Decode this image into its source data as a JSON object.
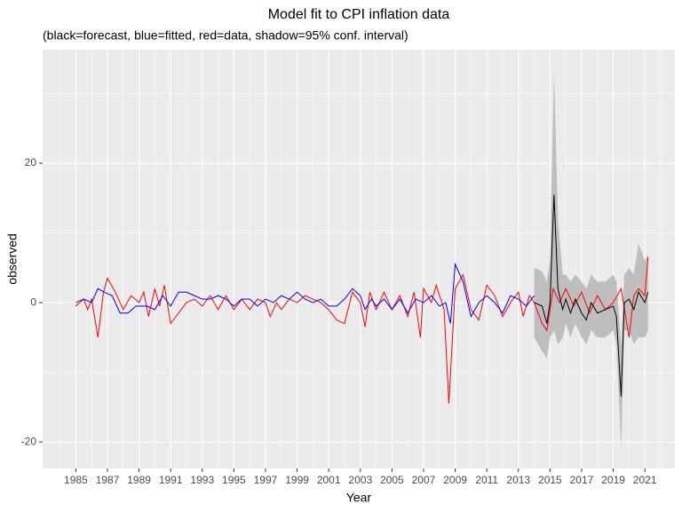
{
  "chart_data": {
    "type": "line",
    "title": "Model fit to CPI inflation data",
    "subtitle": "(black=forecast, blue=fitted, red=data, shadow=95% conf. interval)",
    "xlabel": "Year",
    "ylabel": "observed",
    "xlim": [
      1982.9,
      2022.9
    ],
    "ylim": [
      -23.8,
      36.3
    ],
    "xticks": [
      1985,
      1987,
      1989,
      1991,
      1993,
      1995,
      1997,
      1999,
      2001,
      2003,
      2005,
      2007,
      2009,
      2011,
      2013,
      2015,
      2017,
      2019,
      2021
    ],
    "xminor": [
      1984,
      1986,
      1988,
      1990,
      1992,
      1994,
      1996,
      1998,
      2000,
      2002,
      2004,
      2006,
      2008,
      2010,
      2012,
      2014,
      2016,
      2018,
      2020,
      2022
    ],
    "yticks": [
      -20,
      0,
      20
    ],
    "yminor": [
      -10,
      10,
      30
    ],
    "grid": true,
    "band": {
      "color": "#bebebe",
      "x": [
        2014,
        2014.5,
        2014.8,
        2015,
        2015.25,
        2015.5,
        2015.8,
        2016,
        2016.3,
        2016.6,
        2017,
        2017.3,
        2017.6,
        2018,
        2018.5,
        2019,
        2019.2,
        2019.5,
        2019.7,
        2020,
        2020.3,
        2020.6,
        2021,
        2021.2
      ],
      "upper": [
        5,
        4.5,
        3,
        6,
        33.5,
        12,
        4,
        4,
        3,
        4,
        3,
        2,
        4,
        3,
        3,
        4,
        3,
        -6,
        4,
        5,
        4,
        8.5,
        6,
        7
      ],
      "lower": [
        -5,
        -7,
        -8,
        -5,
        -4,
        -6,
        -5,
        -3,
        -5,
        -3,
        -5,
        -6,
        -4,
        -5,
        -5,
        -4,
        -6,
        -21,
        -4,
        -4,
        -6,
        -5,
        -5,
        -4
      ]
    },
    "series": [
      {
        "color": "#ff0000",
        "x": [
          1985,
          1985.5,
          1985.75,
          1986,
          1986.4,
          1986.75,
          1987,
          1987.5,
          1988,
          1988.5,
          1989,
          1989.3,
          1989.6,
          1990,
          1990.3,
          1990.6,
          1991,
          1991.5,
          1992,
          1992.5,
          1993,
          1993.5,
          1994,
          1994.5,
          1995,
          1995.5,
          1996,
          1996.5,
          1997,
          1997.3,
          1997.7,
          1998,
          1998.5,
          1999,
          1999.5,
          2000,
          2000.5,
          2001,
          2001.5,
          2002,
          2002.5,
          2003,
          2003.3,
          2003.6,
          2004,
          2004.5,
          2005,
          2005.5,
          2006,
          2006.4,
          2006.8,
          2007,
          2007.5,
          2007.8,
          2008.3,
          2008.6,
          2009,
          2009.5,
          2010,
          2010.5,
          2011,
          2011.5,
          2012,
          2012.5,
          2013,
          2013.3,
          2013.7,
          2014,
          2014.5,
          2014.8,
          2015.2,
          2015.6,
          2016,
          2016.5,
          2017,
          2017.5,
          2018,
          2018.5,
          2019,
          2019.5,
          2020,
          2020.3,
          2020.6,
          2021,
          2021.2
        ],
        "values": [
          -0.5,
          0.5,
          -1,
          0.5,
          -5,
          1.5,
          3.5,
          1.5,
          -1,
          1,
          0,
          1.5,
          -2,
          2,
          -0.5,
          2.5,
          -3,
          -1.5,
          0,
          0.5,
          -0.5,
          1,
          -1,
          1,
          -1,
          0.5,
          -1,
          0.5,
          0,
          -2,
          0,
          -1,
          0.5,
          0,
          1,
          0.5,
          0,
          -1,
          -2.5,
          -3,
          1.5,
          0,
          -3.5,
          1.5,
          -1,
          1.5,
          -1,
          1,
          -2,
          1.5,
          -5,
          2,
          0,
          2.5,
          -1,
          -14.5,
          2,
          4,
          -1,
          -2.5,
          2.5,
          1,
          -2,
          0,
          1.5,
          -2,
          1,
          0,
          -3,
          -4,
          2,
          0,
          2,
          -0.5,
          1.5,
          -1.5,
          1,
          -1,
          0,
          2,
          -5,
          1,
          2,
          1,
          6.5
        ]
      },
      {
        "color": "#0000ff",
        "x": [
          1985,
          1985.5,
          1986,
          1986.4,
          1986.8,
          1987.3,
          1987.8,
          1988.3,
          1988.8,
          1989.5,
          1990,
          1990.5,
          1991,
          1991.5,
          1992,
          1992.5,
          1993,
          1993.5,
          1994,
          1994.5,
          1995,
          1995.5,
          1996,
          1996.5,
          1997,
          1997.5,
          1998,
          1998.5,
          1999,
          1999.5,
          2000,
          2000.5,
          2001,
          2001.5,
          2002,
          2002.5,
          2003,
          2003.3,
          2003.7,
          2004,
          2004.5,
          2005,
          2005.5,
          2006,
          2006.5,
          2007,
          2007.5,
          2008,
          2008.4,
          2008.7,
          2009,
          2009.5,
          2010,
          2010.5,
          2011,
          2011.5,
          2012,
          2012.5,
          2013,
          2013.5,
          2014
        ],
        "values": [
          0,
          0.5,
          0,
          2,
          1.5,
          1,
          -1.5,
          -1.5,
          -0.5,
          -0.5,
          -1,
          1,
          -0.5,
          1.5,
          1.5,
          1,
          0.5,
          0.5,
          1,
          0.5,
          -0.5,
          0.5,
          0.5,
          -0.5,
          0.5,
          0,
          1,
          0.5,
          1.5,
          0.5,
          0,
          0.5,
          -0.5,
          -0.5,
          0.5,
          2,
          1,
          -1,
          0.5,
          -0.5,
          0.5,
          -1,
          0.5,
          -1.5,
          0.5,
          0,
          1,
          -0.5,
          0,
          -3,
          5.5,
          3,
          -2,
          0,
          1,
          0,
          -1.5,
          1,
          0.5,
          -0.5,
          1
        ]
      },
      {
        "color": "#000000",
        "x": [
          2014,
          2014.5,
          2014.8,
          2015,
          2015.25,
          2015.5,
          2015.8,
          2016,
          2016.3,
          2016.6,
          2017,
          2017.3,
          2017.6,
          2018,
          2018.5,
          2019,
          2019.2,
          2019.5,
          2019.7,
          2020,
          2020.3,
          2020.6,
          2021,
          2021.2
        ],
        "values": [
          0,
          -0.5,
          -3,
          0,
          15.5,
          2,
          -1,
          0.5,
          -1.5,
          0.5,
          -1.5,
          -2.5,
          0,
          -1.5,
          -1,
          -0.5,
          -2,
          -13.5,
          0,
          0.5,
          -1,
          1.5,
          0,
          1.5
        ]
      }
    ]
  }
}
